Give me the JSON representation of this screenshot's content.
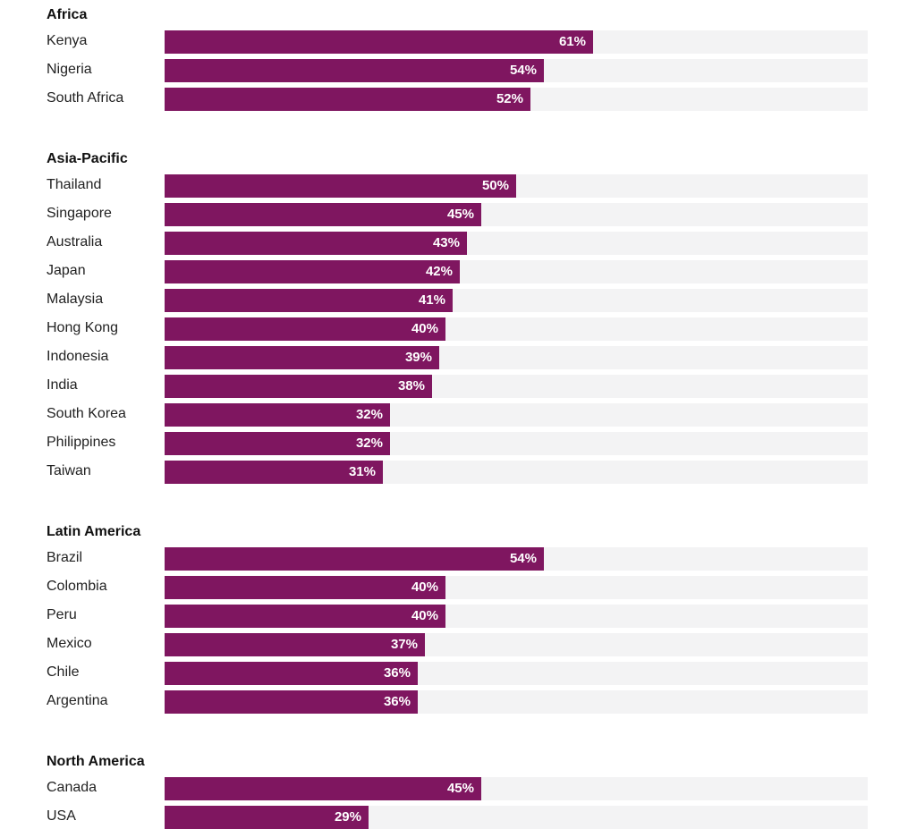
{
  "colors": {
    "bar": "#7f1660",
    "track": "#f3f3f4",
    "value_text": "#ffffff"
  },
  "chart_data": {
    "type": "bar",
    "orientation": "horizontal",
    "grouped": true,
    "xlim": [
      0,
      100
    ],
    "unit": "%",
    "groups": [
      {
        "title": "Africa",
        "rows": [
          {
            "label": "Kenya",
            "value": 61,
            "value_label": "61%"
          },
          {
            "label": "Nigeria",
            "value": 54,
            "value_label": "54%"
          },
          {
            "label": "South Africa",
            "value": 52,
            "value_label": "52%"
          }
        ]
      },
      {
        "title": "Asia-Pacific",
        "rows": [
          {
            "label": "Thailand",
            "value": 50,
            "value_label": "50%"
          },
          {
            "label": "Singapore",
            "value": 45,
            "value_label": "45%"
          },
          {
            "label": "Australia",
            "value": 43,
            "value_label": "43%"
          },
          {
            "label": "Japan",
            "value": 42,
            "value_label": "42%"
          },
          {
            "label": "Malaysia",
            "value": 41,
            "value_label": "41%"
          },
          {
            "label": "Hong Kong",
            "value": 40,
            "value_label": "40%"
          },
          {
            "label": "Indonesia",
            "value": 39,
            "value_label": "39%"
          },
          {
            "label": "India",
            "value": 38,
            "value_label": "38%"
          },
          {
            "label": "South Korea",
            "value": 32,
            "value_label": "32%"
          },
          {
            "label": "Philippines",
            "value": 32,
            "value_label": "32%"
          },
          {
            "label": "Taiwan",
            "value": 31,
            "value_label": "31%"
          }
        ]
      },
      {
        "title": "Latin America",
        "rows": [
          {
            "label": "Brazil",
            "value": 54,
            "value_label": "54%"
          },
          {
            "label": "Colombia",
            "value": 40,
            "value_label": "40%"
          },
          {
            "label": "Peru",
            "value": 40,
            "value_label": "40%"
          },
          {
            "label": "Mexico",
            "value": 37,
            "value_label": "37%"
          },
          {
            "label": "Chile",
            "value": 36,
            "value_label": "36%"
          },
          {
            "label": "Argentina",
            "value": 36,
            "value_label": "36%"
          }
        ]
      },
      {
        "title": "North America",
        "rows": [
          {
            "label": "Canada",
            "value": 45,
            "value_label": "45%"
          },
          {
            "label": "USA",
            "value": 29,
            "value_label": "29%"
          }
        ]
      }
    ]
  }
}
